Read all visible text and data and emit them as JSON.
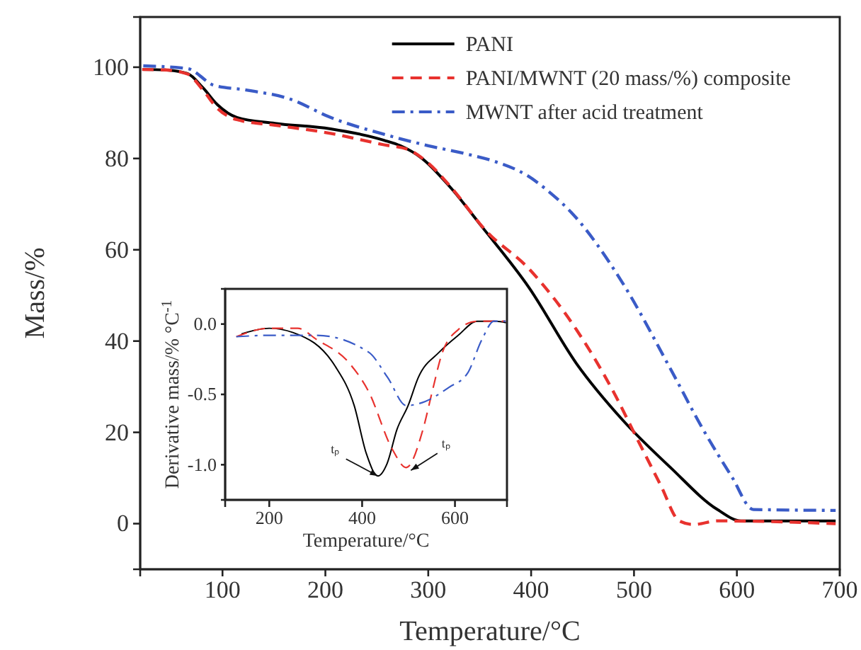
{
  "chart_data": [
    {
      "type": "line",
      "xlabel": "Temperature/°C",
      "ylabel": "Mass/%",
      "xlim": [
        20,
        700
      ],
      "ylim": [
        -10,
        111
      ],
      "xticks": [
        100,
        200,
        300,
        400,
        500,
        600,
        700
      ],
      "yticks": [
        0,
        20,
        40,
        60,
        80,
        100
      ],
      "legend": "top right",
      "series": [
        {
          "name": "PANI",
          "color": "#000000",
          "line_style": "solid",
          "x": [
            22,
            44,
            66,
            81,
            95,
            114,
            151,
            205,
            257,
            273,
            294,
            321,
            352,
            398,
            444,
            489,
            535,
            581,
            604,
            696
          ],
          "values": [
            99.5,
            99.4,
            98.6,
            95.5,
            91.8,
            89,
            87.7,
            86.5,
            84,
            82.8,
            80,
            73.8,
            65.1,
            51.7,
            35.1,
            22.7,
            12.4,
            3.1,
            0.6,
            0.6
          ]
        },
        {
          "name": "PANI/MWNT (20 mass/%) composite",
          "color": "#e8322e",
          "line_style": "dashed",
          "x": [
            22,
            44,
            66,
            81,
            95,
            114,
            151,
            205,
            257,
            280,
            300,
            321,
            356,
            398,
            444,
            480,
            503,
            526,
            544,
            558,
            581,
            696
          ],
          "values": [
            99.5,
            99.4,
            98.5,
            95,
            91,
            88.5,
            87.3,
            85.5,
            83,
            82,
            79,
            74,
            64.2,
            55.8,
            42.5,
            28.9,
            18.6,
            8.4,
            0.6,
            -0.2,
            0.6,
            0
          ]
        },
        {
          "name": "MWNT after acid treatment",
          "color": "#3a5bc7",
          "line_style": "dashdot",
          "x": [
            23,
            66,
            92,
            123,
            166,
            205,
            257,
            300,
            337,
            364,
            396,
            418,
            439,
            489,
            535,
            567,
            595,
            616,
            696
          ],
          "values": [
            100.3,
            99.7,
            96,
            95,
            93,
            89,
            85.3,
            82.8,
            81,
            79.4,
            76.3,
            72.6,
            68.2,
            52.7,
            34.1,
            20.7,
            10.3,
            3.1,
            2.9
          ]
        }
      ]
    },
    {
      "type": "line",
      "xlabel": "Temperature/°C",
      "ylabel": "Derivative mass/% °C$^{-1}$",
      "xlim": [
        105,
        712
      ],
      "ylim": [
        -1.25,
        0.25
      ],
      "xticks": [
        200,
        400,
        600
      ],
      "yticks": [
        {
          "value": 0,
          "label": "0.0"
        },
        -0.5,
        {
          "value": -1,
          "label": "-1.0"
        }
      ],
      "annotations": [
        {
          "text": "tₚ",
          "x": 434,
          "y": -1.08
        },
        {
          "text": "tₚ",
          "x": 505,
          "y": -1.04
        }
      ],
      "series": [
        {
          "color": "#000000",
          "line_style": "solid",
          "x": [
            140,
            200,
            251,
            342,
            383,
            409,
            434,
            454,
            475,
            499,
            521,
            566,
            607,
            648,
            689,
            710
          ],
          "values": [
            -0.07,
            -0.03,
            -0.06,
            -0.3,
            -0.58,
            -0.92,
            -1.08,
            -0.99,
            -0.75,
            -0.58,
            -0.38,
            -0.2,
            -0.08,
            0.02,
            0.02,
            0.01
          ]
        },
        {
          "color": "#e8322e",
          "line_style": "dashed",
          "x": [
            129,
            200,
            261,
            302,
            373,
            414,
            465,
            495,
            531,
            551,
            572,
            607,
            648,
            709
          ],
          "values": [
            -0.09,
            -0.03,
            -0.03,
            -0.11,
            -0.28,
            -0.48,
            -0.89,
            -1.02,
            -0.75,
            -0.48,
            -0.21,
            -0.04,
            0.02,
            0.02
          ]
        },
        {
          "color": "#3a5bc7",
          "line_style": "dashdot",
          "x": [
            129,
            200,
            302,
            414,
            455,
            495,
            536,
            587,
            627,
            658,
            684,
            709
          ],
          "values": [
            -0.09,
            -0.08,
            -0.08,
            -0.2,
            -0.38,
            -0.58,
            -0.55,
            -0.45,
            -0.35,
            -0.11,
            0.02,
            0.02
          ]
        }
      ]
    }
  ]
}
